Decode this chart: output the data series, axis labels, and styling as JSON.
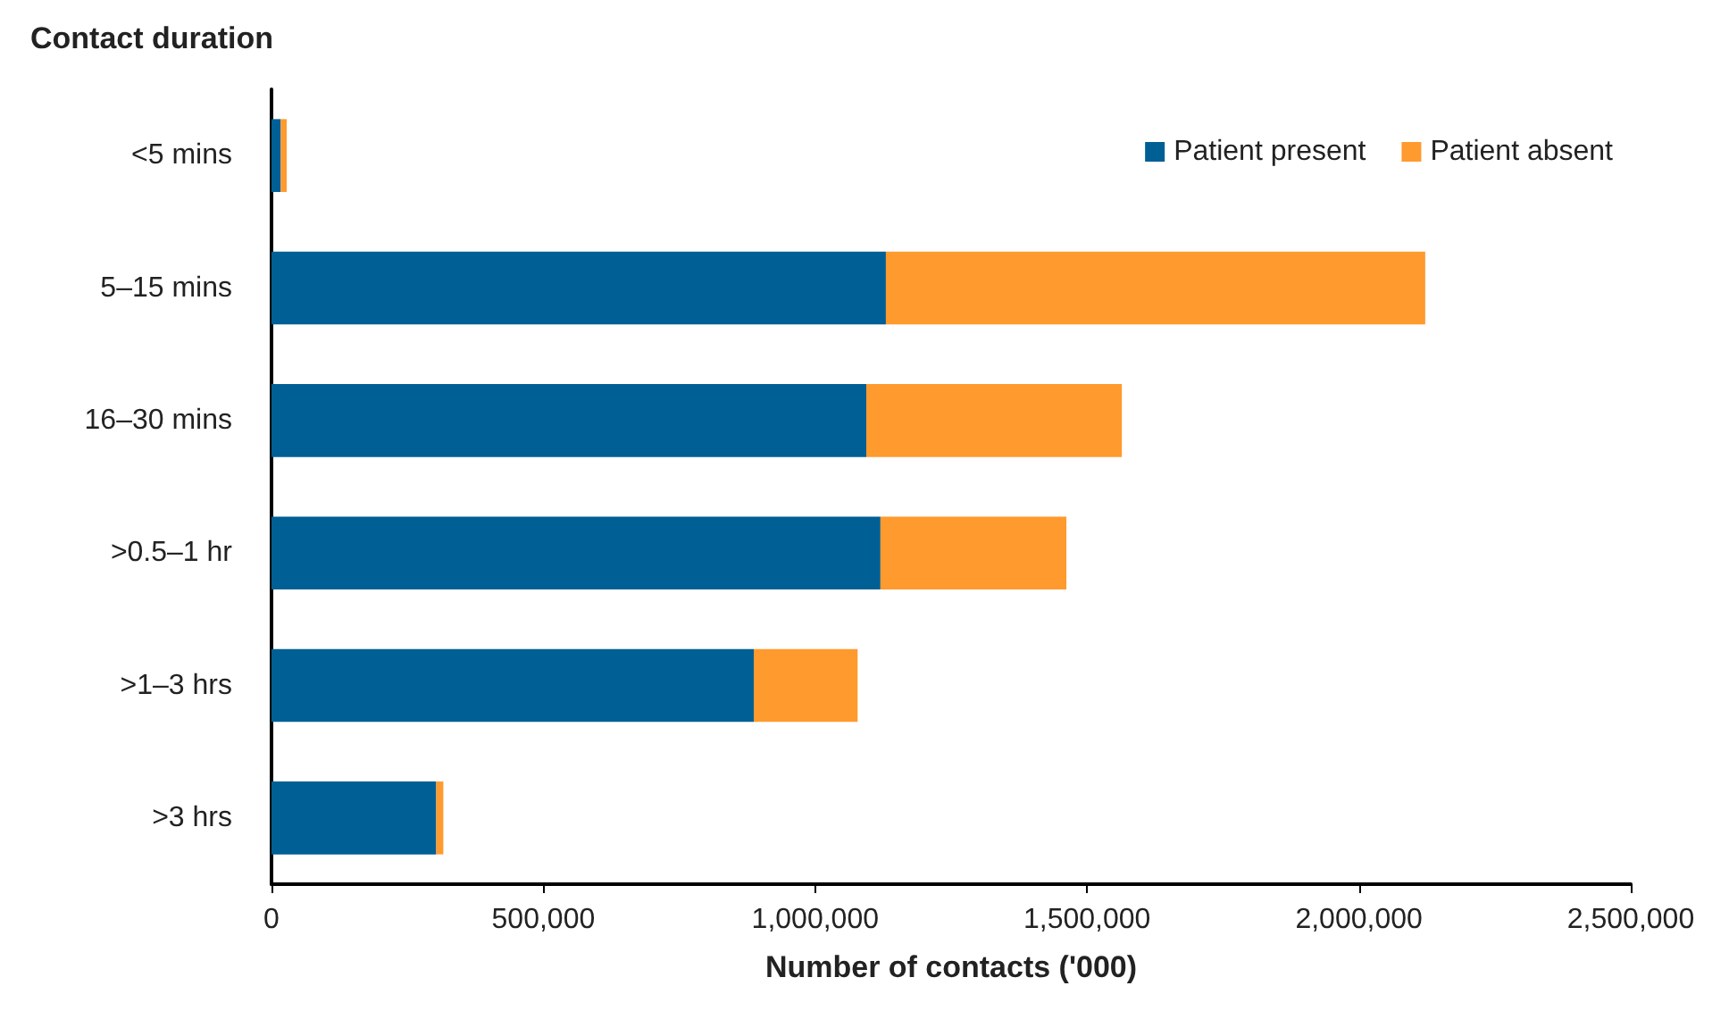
{
  "chart_data": {
    "type": "bar",
    "orientation": "horizontal",
    "stacked": true,
    "ylabel": "Contact duration",
    "xlabel": "Number of contacts ('000)",
    "categories": [
      "<5 mins",
      "5–15 mins",
      "16–30 mins",
      ">0.5–1 hr",
      ">1–3 hrs",
      ">3 hrs"
    ],
    "series": [
      {
        "name": "Patient present",
        "color": "#005f94",
        "values": [
          17000,
          1130000,
          1094000,
          1120000,
          887000,
          303000
        ]
      },
      {
        "name": "Patient absent",
        "color": "#ff9a2e",
        "values": [
          11000,
          992000,
          470000,
          342000,
          191000,
          13000
        ]
      }
    ],
    "xlim": [
      0,
      2500000
    ],
    "xticks": [
      0,
      {
        "value": 500000,
        "label": "500,000"
      },
      {
        "value": 1000000,
        "label": "1,000,000"
      },
      {
        "value": 1500000,
        "label": "1,500,000"
      },
      {
        "value": 2000000,
        "label": "2,000,000"
      },
      {
        "value": 2500000,
        "label": "2,500,000"
      }
    ],
    "grid": false,
    "legend": "top right"
  }
}
